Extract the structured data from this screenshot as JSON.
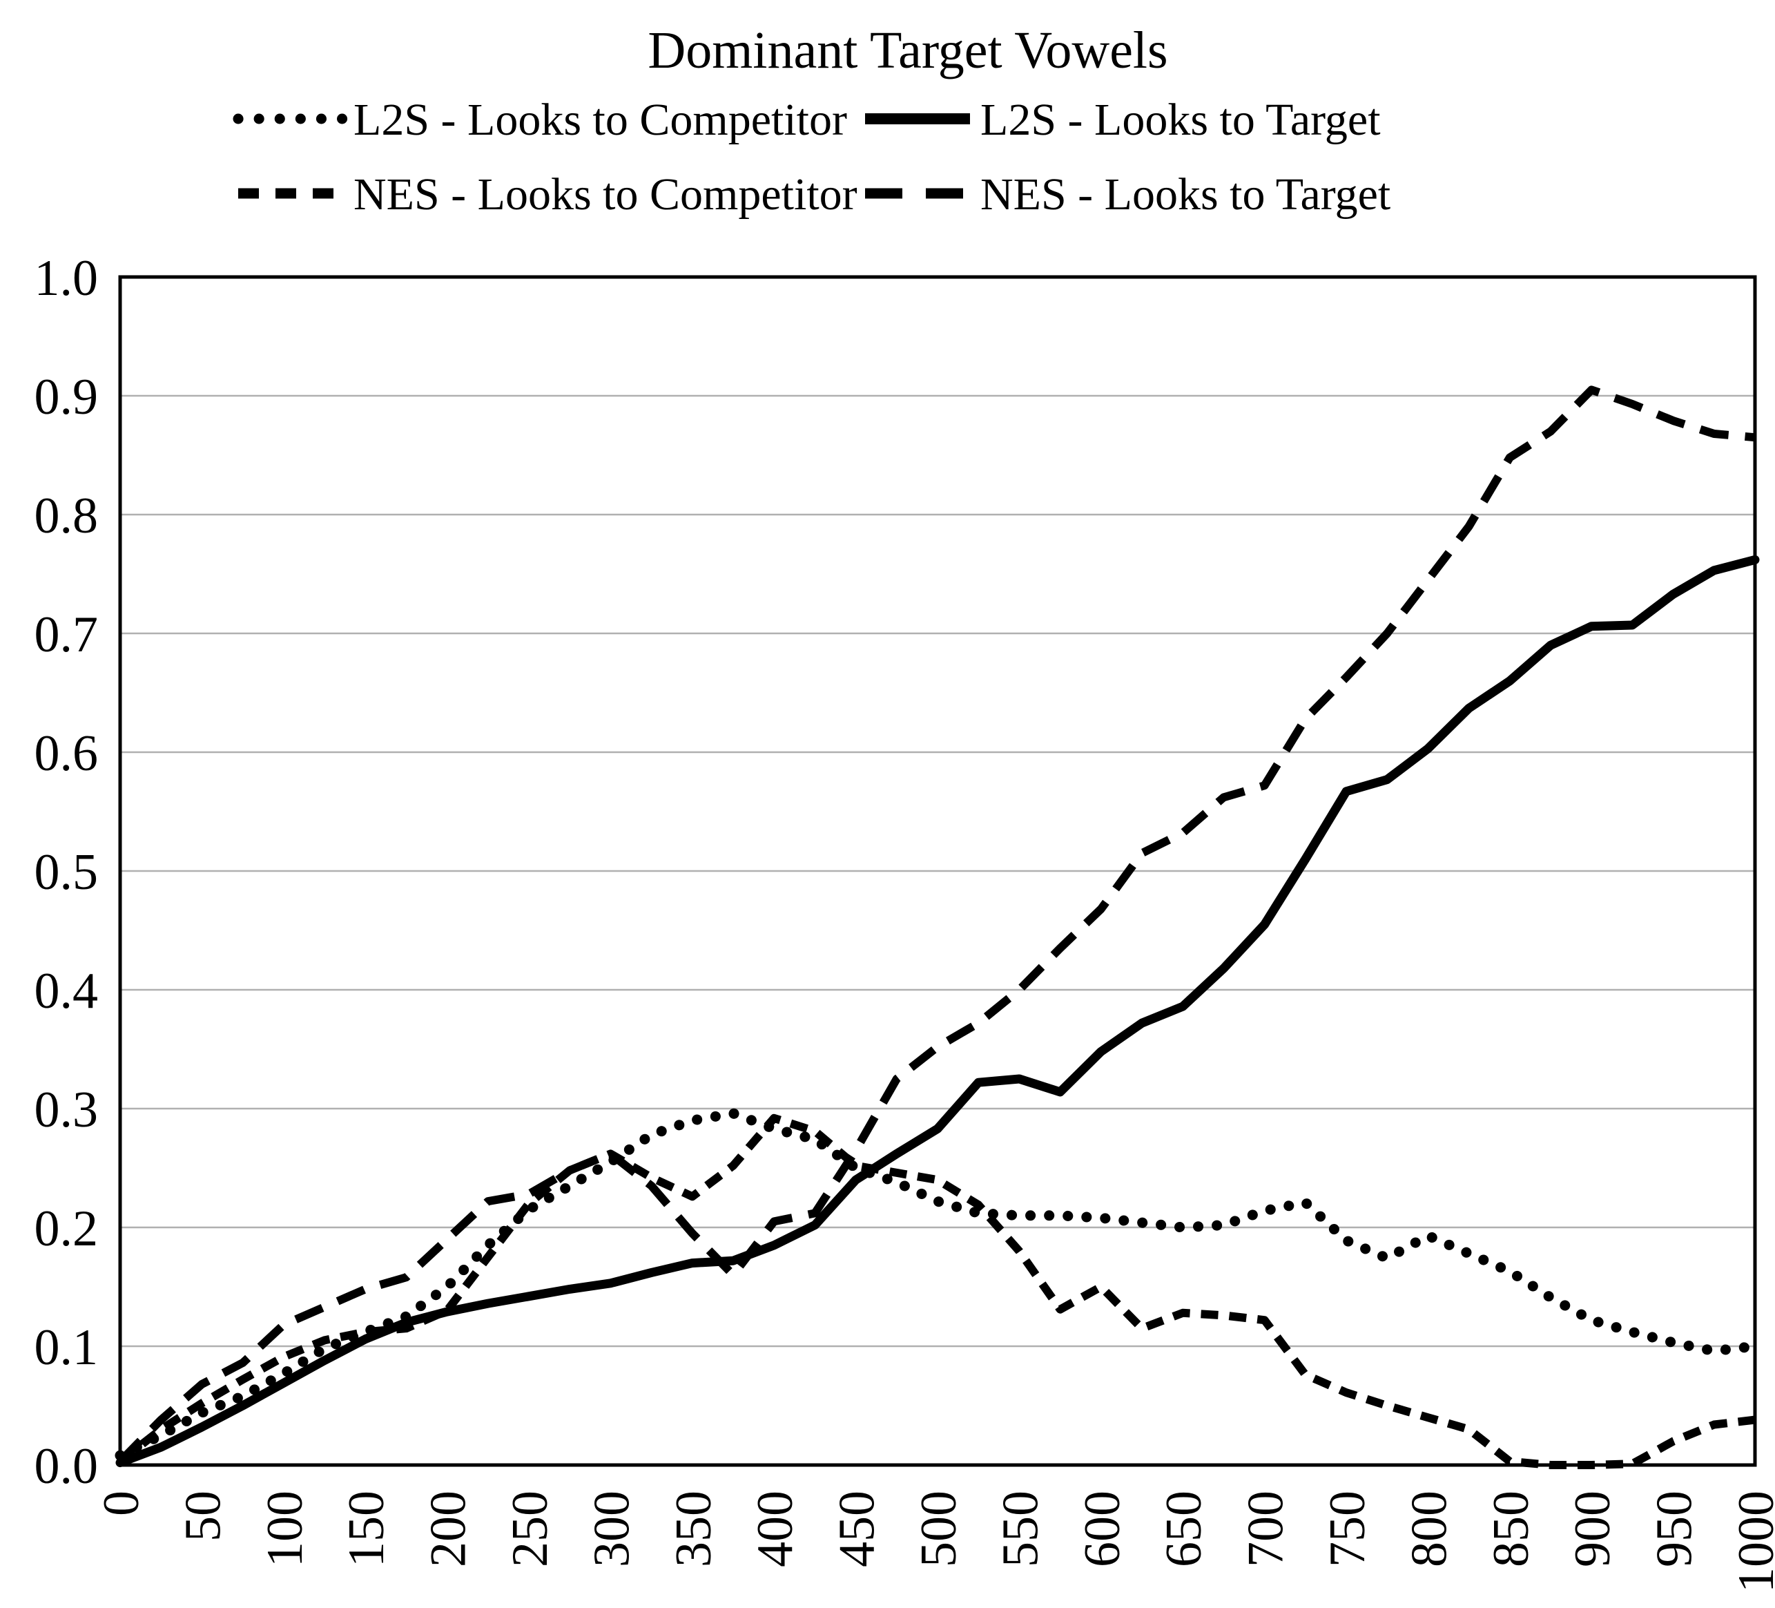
{
  "title": "Dominant Target Vowels",
  "colors": {
    "line": "#000000",
    "gridline": "#b0b0b0",
    "background": "#ffffff"
  },
  "chart_data": {
    "type": "line",
    "title": "Dominant Target Vowels",
    "xlabel": "",
    "ylabel": "",
    "xlim": [
      0,
      1000
    ],
    "ylim": [
      0.0,
      1.0
    ],
    "grid": true,
    "legend_position": "top",
    "x_tick_values": [
      0,
      50,
      100,
      150,
      200,
      250,
      300,
      350,
      400,
      450,
      500,
      550,
      600,
      650,
      700,
      750,
      800,
      850,
      900,
      950,
      1000
    ],
    "x_tick_labels": [
      "0",
      "50",
      "100",
      "150",
      "200",
      "250",
      "300",
      "350",
      "400",
      "450",
      "500",
      "550",
      "600",
      "650",
      "700",
      "750",
      "800",
      "850",
      "900",
      "950",
      "1000"
    ],
    "y_ticks": [
      0.0,
      0.1,
      0.2,
      0.3,
      0.4,
      0.5,
      0.6,
      0.7,
      0.8,
      0.9,
      1.0
    ],
    "y_tick_labels": [
      "0.0",
      "0.1",
      "0.2",
      "0.3",
      "0.4",
      "0.5",
      "0.6",
      "0.7",
      "0.8",
      "0.9",
      "1.0"
    ],
    "x": [
      0,
      25,
      50,
      75,
      100,
      125,
      150,
      175,
      200,
      225,
      250,
      275,
      300,
      325,
      350,
      375,
      400,
      425,
      450,
      475,
      500,
      525,
      550,
      575,
      600,
      625,
      650,
      675,
      700,
      725,
      750,
      775,
      800,
      825,
      850,
      875,
      900,
      925,
      950,
      975,
      1000
    ],
    "series": [
      {
        "name": "L2S - Looks to Competitor",
        "style": "dotted",
        "values": [
          0.008,
          0.025,
          0.044,
          0.058,
          0.077,
          0.098,
          0.112,
          0.125,
          0.15,
          0.185,
          0.215,
          0.235,
          0.255,
          0.278,
          0.29,
          0.296,
          0.283,
          0.274,
          0.25,
          0.238,
          0.222,
          0.212,
          0.21,
          0.21,
          0.208,
          0.204,
          0.2,
          0.202,
          0.214,
          0.221,
          0.189,
          0.174,
          0.193,
          0.178,
          0.163,
          0.141,
          0.122,
          0.112,
          0.103,
          0.096,
          0.1
        ]
      },
      {
        "name": "L2S - Looks to Target",
        "style": "solid",
        "values": [
          0.002,
          0.015,
          0.032,
          0.05,
          0.069,
          0.088,
          0.106,
          0.12,
          0.129,
          0.136,
          0.142,
          0.148,
          0.153,
          0.162,
          0.17,
          0.172,
          0.185,
          0.202,
          0.24,
          0.262,
          0.283,
          0.322,
          0.325,
          0.314,
          0.348,
          0.372,
          0.386,
          0.418,
          0.455,
          0.51,
          0.567,
          0.577,
          0.603,
          0.637,
          0.66,
          0.69,
          0.706,
          0.707,
          0.733,
          0.753,
          0.762
        ]
      },
      {
        "name": "NES - Looks to Competitor",
        "style": "short-dash",
        "values": [
          0.003,
          0.03,
          0.052,
          0.072,
          0.091,
          0.105,
          0.112,
          0.115,
          0.13,
          0.175,
          0.22,
          0.248,
          0.262,
          0.242,
          0.226,
          0.252,
          0.292,
          0.281,
          0.252,
          0.246,
          0.24,
          0.219,
          0.18,
          0.131,
          0.15,
          0.115,
          0.128,
          0.126,
          0.122,
          0.076,
          0.061,
          0.05,
          0.04,
          0.03,
          0.003,
          0.0,
          0.0,
          0.001,
          0.02,
          0.034,
          0.038
        ]
      },
      {
        "name": "NES - Looks to Target",
        "style": "long-dash",
        "values": [
          0.003,
          0.038,
          0.068,
          0.086,
          0.118,
          0.133,
          0.148,
          0.158,
          0.19,
          0.222,
          0.228,
          0.248,
          0.262,
          0.235,
          0.195,
          0.16,
          0.205,
          0.212,
          0.265,
          0.325,
          0.352,
          0.372,
          0.4,
          0.435,
          0.468,
          0.515,
          0.532,
          0.562,
          0.572,
          0.628,
          0.663,
          0.7,
          0.745,
          0.79,
          0.848,
          0.87,
          0.905,
          0.893,
          0.879,
          0.868,
          0.865
        ]
      }
    ]
  }
}
